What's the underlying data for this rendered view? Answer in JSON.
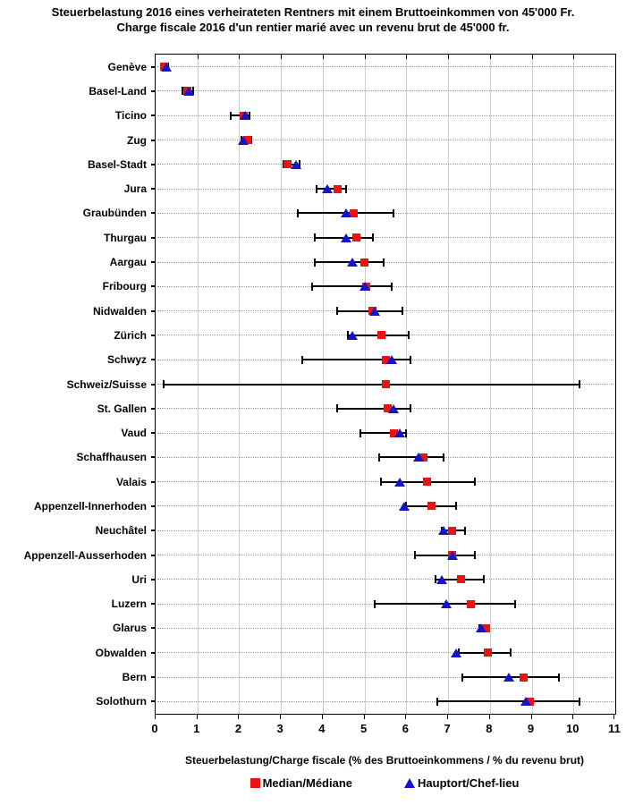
{
  "title_de": "Steuerbelastung 2016 eines verheirateten Rentners mit einem Bruttoeinkommen von 45'000 Fr.",
  "title_fr": "Charge fiscale 2016 d'un rentier marié avec un revenu brut de 45'000 fr.",
  "x_axis_title": "Steuerbelastung/Charge fiscale (% des Bruttoeinkommens / % du revenu brut)",
  "legend": {
    "median_label": "Median/Médiane",
    "capital_label": "Hauptort/Chef-lieu"
  },
  "colors": {
    "median": "#ee1111",
    "capital": "#1414cc",
    "range": "#000000",
    "gridline": "#cccccc"
  },
  "chart_data": {
    "type": "scatter",
    "subtype": "horizontal-range-dot-plot",
    "title": "Steuerbelastung 2016 eines verheirateten Rentners mit einem Bruttoeinkommen von 45'000 Fr. / Charge fiscale 2016 d'un rentier marié avec un revenu brut de 45'000 fr.",
    "xlabel": "Steuerbelastung/Charge fiscale (% des Bruttoeinkommens / % du revenu brut)",
    "xlim": [
      0,
      11
    ],
    "x_ticks": [
      0,
      1,
      2,
      3,
      4,
      5,
      6,
      7,
      8,
      9,
      10,
      11
    ],
    "grid": true,
    "legend_position": "bottom",
    "categories": [
      "Genève",
      "Basel-Land",
      "Ticino",
      "Zug",
      "Basel-Stadt",
      "Jura",
      "Graubünden",
      "Thurgau",
      "Aargau",
      "Fribourg",
      "Nidwalden",
      "Zürich",
      "Schwyz",
      "Schweiz/Suisse",
      "St. Gallen",
      "Vaud",
      "Schaffhausen",
      "Valais",
      "Appenzell-Innerhoden",
      "Neuchâtel",
      "Appenzell-Ausserhoden",
      "Uri",
      "Luzern",
      "Glarus",
      "Obwalden",
      "Bern",
      "Solothurn"
    ],
    "series": [
      {
        "name": "Range min (whisker low)",
        "values": [
          0.15,
          0.65,
          1.8,
          2.05,
          3.05,
          3.85,
          3.4,
          3.8,
          3.8,
          3.75,
          4.35,
          4.6,
          3.5,
          0.2,
          4.35,
          4.9,
          5.35,
          5.4,
          6.0,
          6.85,
          6.2,
          6.7,
          5.25,
          7.75,
          7.25,
          7.35,
          6.75
        ]
      },
      {
        "name": "Range max (whisker high)",
        "values": [
          0.3,
          0.9,
          2.25,
          2.3,
          3.45,
          4.55,
          5.7,
          5.2,
          5.45,
          5.65,
          5.9,
          6.05,
          6.1,
          10.15,
          6.1,
          6.0,
          6.9,
          7.65,
          7.2,
          7.4,
          7.65,
          7.85,
          8.6,
          7.95,
          8.5,
          9.65,
          10.15
        ]
      },
      {
        "name": "Median/Médiane",
        "marker": "red-square",
        "values": [
          0.2,
          0.75,
          2.1,
          2.2,
          3.15,
          4.35,
          4.75,
          4.8,
          5.0,
          5.05,
          5.2,
          5.4,
          5.5,
          5.5,
          5.55,
          5.7,
          6.4,
          6.5,
          6.6,
          7.1,
          7.1,
          7.3,
          7.55,
          7.9,
          7.95,
          8.8,
          8.95
        ]
      },
      {
        "name": "Hauptort/Chef-lieu",
        "marker": "blue-triangle",
        "values": [
          0.25,
          0.8,
          2.15,
          2.1,
          3.35,
          4.1,
          4.55,
          4.55,
          4.7,
          5.0,
          5.25,
          4.7,
          5.65,
          null,
          5.7,
          5.85,
          6.3,
          5.85,
          5.95,
          6.9,
          7.1,
          6.85,
          6.95,
          7.8,
          7.2,
          8.45,
          8.85
        ]
      }
    ]
  }
}
